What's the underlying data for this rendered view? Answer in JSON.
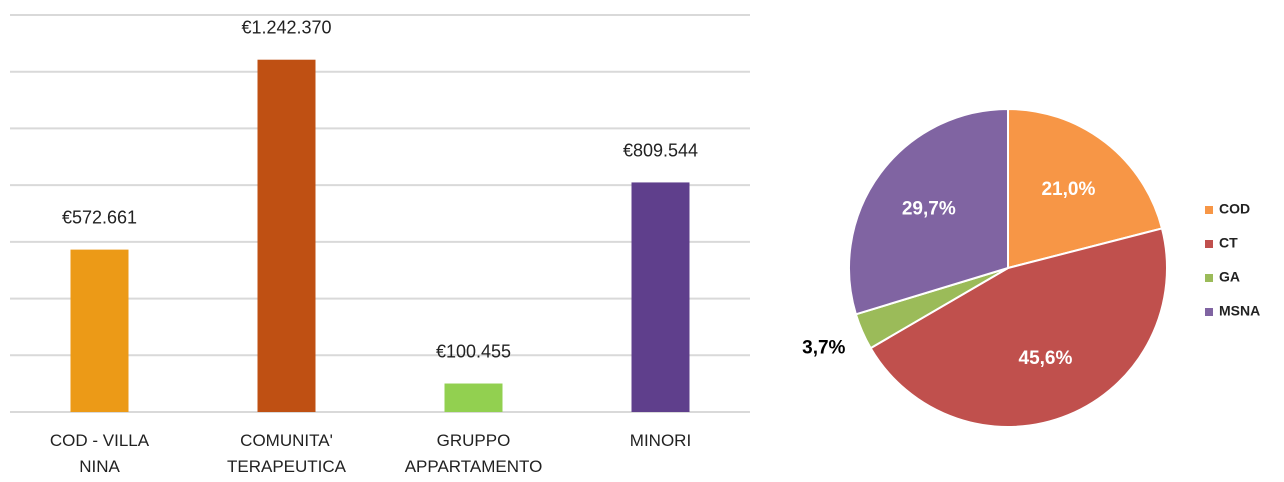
{
  "chart_data": [
    {
      "type": "bar",
      "categories": [
        "COD - VILLA NINA",
        "COMUNITA' TERAPEUTICA",
        "GRUPPO APPARTAMENTO",
        "MINORI"
      ],
      "values": [
        572661,
        1242370,
        100455,
        809544
      ],
      "value_labels": [
        "€572.661",
        "€1.242.370",
        "€100.455",
        "€809.544"
      ],
      "colors": [
        "#ec9a17",
        "#bf5013",
        "#92d050",
        "#5f3f8c"
      ],
      "ylim": [
        0,
        1400000
      ],
      "yticks": [
        0,
        200000,
        400000,
        600000,
        800000,
        1000000,
        1200000,
        1400000
      ],
      "grid": true
    },
    {
      "type": "pie",
      "categories": [
        "COD",
        "CT",
        "GA",
        "MSNA"
      ],
      "values": [
        21.0,
        45.6,
        3.7,
        29.7
      ],
      "value_labels": [
        "21,0%",
        "45,6%",
        "3,7%",
        "29,7%"
      ],
      "colors": [
        "#f79646",
        "#c0504d",
        "#9bbb59",
        "#8064a2"
      ],
      "legend": "right"
    }
  ]
}
